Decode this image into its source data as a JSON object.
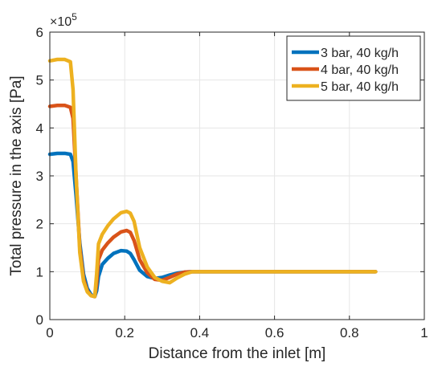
{
  "chart_data": {
    "type": "line",
    "xlabel": "Distance from the inlet [m]",
    "ylabel": "Total pressure in the axis [Pa]",
    "xlim": [
      0,
      1
    ],
    "ylim": [
      0,
      600000
    ],
    "x_ticks": [
      0,
      0.2,
      0.4,
      0.6,
      0.8,
      1
    ],
    "x_tick_labels": [
      "0",
      "0.2",
      "0.4",
      "0.6",
      "0.8",
      "1"
    ],
    "y_ticks": [
      0,
      100000,
      200000,
      300000,
      400000,
      500000,
      600000
    ],
    "y_tick_labels": [
      "0",
      "1",
      "2",
      "3",
      "4",
      "5",
      "6"
    ],
    "y_exponent_label": {
      "base": "×10",
      "power": "5"
    },
    "grid": true,
    "legend_position": "top-right",
    "series": [
      {
        "name": "3 bar, 40 kg/h",
        "color": "#0072BD",
        "x": [
          0,
          0.02,
          0.04,
          0.055,
          0.062,
          0.07,
          0.08,
          0.09,
          0.1,
          0.11,
          0.12,
          0.125,
          0.13,
          0.14,
          0.155,
          0.17,
          0.19,
          0.205,
          0.215,
          0.225,
          0.24,
          0.26,
          0.28,
          0.3,
          0.32,
          0.34,
          0.36,
          0.38,
          0.4,
          0.5,
          0.6,
          0.7,
          0.8,
          0.87
        ],
        "y": [
          345000,
          347000,
          347000,
          345000,
          330000,
          260000,
          160000,
          95000,
          65000,
          52000,
          48000,
          60000,
          90000,
          115000,
          128000,
          138000,
          144000,
          143000,
          138000,
          125000,
          103000,
          90000,
          86000,
          88000,
          93000,
          97000,
          99000,
          100000,
          100000,
          100000,
          100000,
          100000,
          100000,
          100000
        ]
      },
      {
        "name": "4 bar, 40 kg/h",
        "color": "#D95319",
        "x": [
          0,
          0.02,
          0.04,
          0.055,
          0.062,
          0.07,
          0.08,
          0.09,
          0.1,
          0.11,
          0.12,
          0.125,
          0.13,
          0.14,
          0.155,
          0.17,
          0.19,
          0.205,
          0.215,
          0.225,
          0.24,
          0.26,
          0.28,
          0.3,
          0.32,
          0.34,
          0.36,
          0.38,
          0.4,
          0.5,
          0.6,
          0.7,
          0.8,
          0.87
        ],
        "y": [
          445000,
          447000,
          447000,
          443000,
          420000,
          300000,
          150000,
          85000,
          60000,
          50000,
          48000,
          75000,
          125000,
          145000,
          160000,
          172000,
          183000,
          186000,
          182000,
          165000,
          125000,
          98000,
          84000,
          82000,
          88000,
          95000,
          99000,
          100000,
          100000,
          100000,
          100000,
          100000,
          100000,
          100000
        ]
      },
      {
        "name": "5 bar, 40 kg/h",
        "color": "#EDB120",
        "x": [
          0,
          0.02,
          0.04,
          0.055,
          0.062,
          0.07,
          0.08,
          0.09,
          0.1,
          0.11,
          0.12,
          0.125,
          0.13,
          0.14,
          0.155,
          0.17,
          0.19,
          0.205,
          0.215,
          0.225,
          0.24,
          0.26,
          0.28,
          0.3,
          0.32,
          0.34,
          0.36,
          0.38,
          0.4,
          0.5,
          0.6,
          0.7,
          0.8,
          0.87
        ],
        "y": [
          540000,
          543000,
          543000,
          538000,
          480000,
          300000,
          140000,
          80000,
          58000,
          50000,
          48000,
          95000,
          158000,
          178000,
          196000,
          210000,
          223000,
          226000,
          222000,
          205000,
          150000,
          110000,
          88000,
          80000,
          77000,
          87000,
          95000,
          100000,
          100000,
          100000,
          100000,
          100000,
          100000,
          100000
        ]
      }
    ]
  }
}
